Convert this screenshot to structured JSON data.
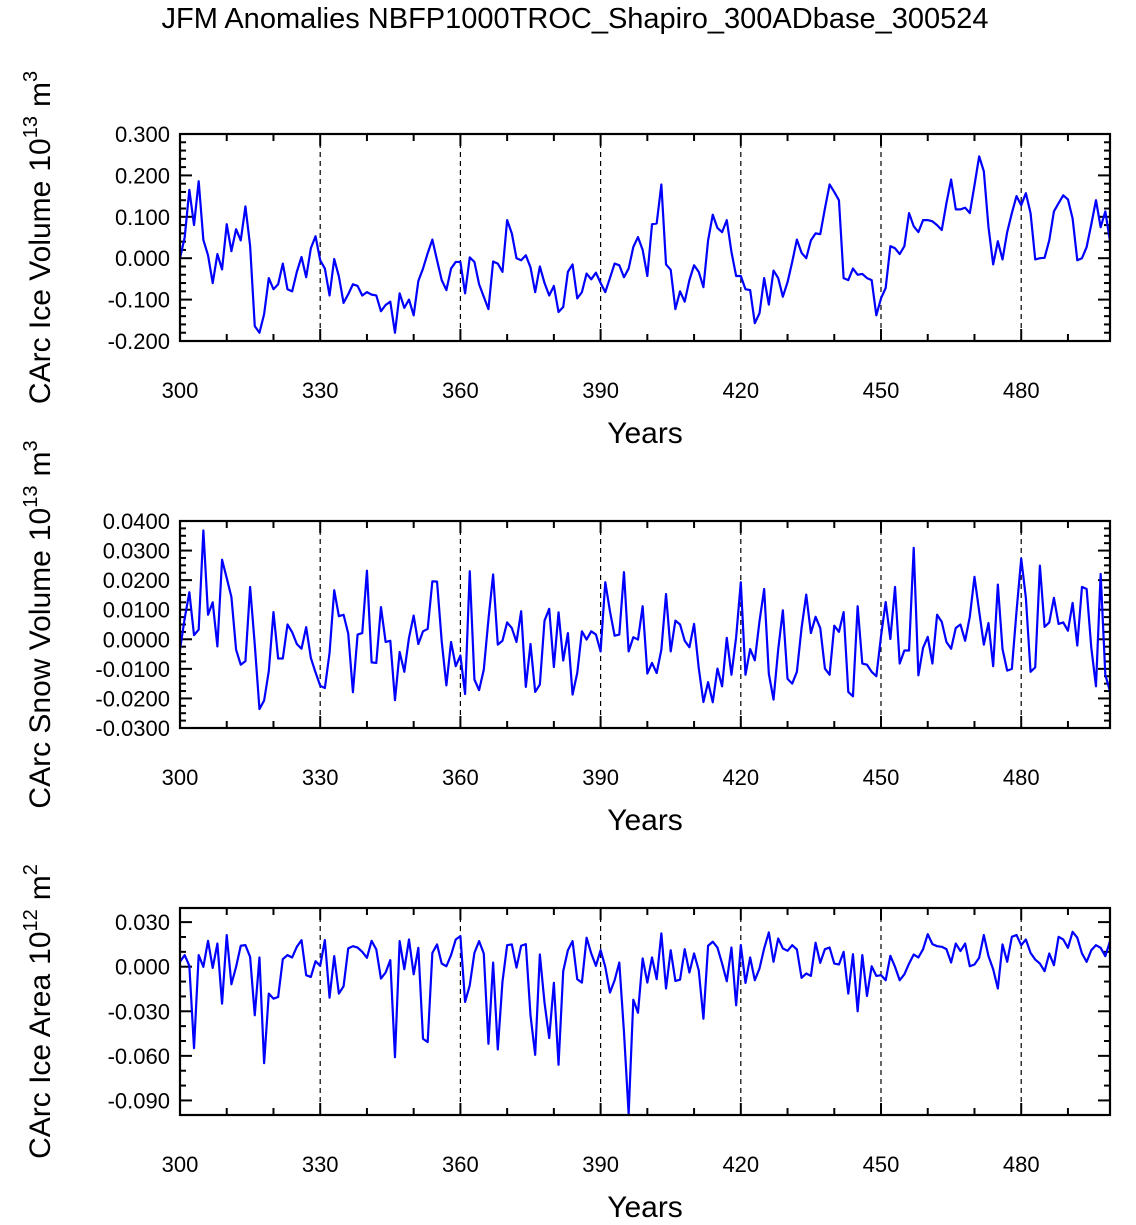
{
  "title": "JFM Anomalies NBFP1000TROC_Shapiro_300ADbase_300524",
  "line_color": "#0000ff",
  "chart_data": [
    {
      "type": "line",
      "ylabel": {
        "name": "CArc Ice Volume",
        "base": "10",
        "exp": "13",
        "unit": "m",
        "unit_exp": "3"
      },
      "xlabel": "Years",
      "xlim": [
        300,
        499
      ],
      "ylim": [
        -0.2,
        0.3
      ],
      "xticks": [
        300,
        330,
        360,
        390,
        420,
        450,
        480
      ],
      "xtick_labels": [
        "300",
        "330",
        "360",
        "390",
        "420",
        "450",
        "480"
      ],
      "yticks": [
        0.3,
        0.2,
        0.1,
        0.0,
        -0.1,
        -0.2
      ],
      "ytick_labels": [
        "0.300",
        "0.200",
        "0.100",
        "0.000",
        "-0.100",
        "-0.200"
      ],
      "y_minor_step": 0.02,
      "reference_lines_x": [
        330,
        360,
        390,
        420,
        450,
        480
      ],
      "years": {
        "start": 300,
        "end": 499,
        "step": 1
      },
      "values": [
        0.0,
        0.05,
        0.165,
        0.08,
        0.186,
        0.044,
        0.007,
        -0.06,
        0.01,
        -0.027,
        0.082,
        0.017,
        0.07,
        0.043,
        0.125,
        0.03,
        -0.164,
        -0.18,
        -0.135,
        -0.048,
        -0.075,
        -0.063,
        -0.013,
        -0.075,
        -0.08,
        -0.033,
        0.003,
        -0.046,
        0.024,
        0.053,
        -0.005,
        -0.025,
        -0.09,
        -0.002,
        -0.044,
        -0.108,
        -0.087,
        -0.063,
        -0.067,
        -0.09,
        -0.082,
        -0.088,
        -0.09,
        -0.128,
        -0.113,
        -0.105,
        -0.18,
        -0.085,
        -0.12,
        -0.1,
        -0.138,
        -0.055,
        -0.025,
        0.012,
        0.045,
        -0.005,
        -0.053,
        -0.077,
        -0.025,
        -0.009,
        -0.009,
        -0.085,
        0.002,
        -0.009,
        -0.063,
        -0.093,
        -0.123,
        -0.008,
        -0.013,
        -0.033,
        0.092,
        0.06,
        0.0,
        -0.005,
        0.007,
        -0.022,
        -0.082,
        -0.02,
        -0.06,
        -0.09,
        -0.067,
        -0.13,
        -0.118,
        -0.033,
        -0.015,
        -0.097,
        -0.082,
        -0.037,
        -0.051,
        -0.035,
        -0.06,
        -0.082,
        -0.048,
        -0.013,
        -0.017,
        -0.046,
        -0.025,
        0.027,
        0.051,
        0.02,
        -0.043,
        0.082,
        0.084,
        0.178,
        -0.015,
        -0.028,
        -0.123,
        -0.08,
        -0.105,
        -0.053,
        -0.017,
        -0.033,
        -0.07,
        0.043,
        0.105,
        0.073,
        0.063,
        0.092,
        0.015,
        -0.043,
        -0.043,
        -0.075,
        -0.077,
        -0.157,
        -0.133,
        -0.048,
        -0.112,
        -0.03,
        -0.048,
        -0.093,
        -0.058,
        -0.009,
        0.045,
        0.013,
        0.0,
        0.043,
        0.06,
        0.058,
        0.12,
        0.178,
        0.16,
        0.14,
        -0.048,
        -0.053,
        -0.025,
        -0.04,
        -0.038,
        -0.048,
        -0.053,
        -0.138,
        -0.097,
        -0.072,
        0.029,
        0.024,
        0.01,
        0.029,
        0.109,
        0.077,
        0.063,
        0.092,
        0.092,
        0.089,
        0.08,
        0.068,
        0.133,
        0.19,
        0.118,
        0.118,
        0.122,
        0.109,
        0.176,
        0.246,
        0.21,
        0.075,
        -0.015,
        0.041,
        -0.003,
        0.063,
        0.109,
        0.15,
        0.128,
        0.157,
        0.109,
        -0.003,
        0.0,
        0.001,
        0.043,
        0.113,
        0.133,
        0.152,
        0.142,
        0.096,
        -0.005,
        0.0,
        0.027,
        0.082,
        0.14,
        0.075,
        0.113,
        0.041
      ]
    },
    {
      "type": "line",
      "ylabel": {
        "name": "CArc Snow Volume",
        "base": "10",
        "exp": "13",
        "unit": "m",
        "unit_exp": "3"
      },
      "xlabel": "Years",
      "xlim": [
        300,
        499
      ],
      "ylim": [
        -0.03,
        0.04
      ],
      "xticks": [
        300,
        330,
        360,
        390,
        420,
        450,
        480
      ],
      "xtick_labels": [
        "300",
        "330",
        "360",
        "390",
        "420",
        "450",
        "480"
      ],
      "yticks": [
        0.04,
        0.03,
        0.02,
        0.01,
        0.0,
        -0.01,
        -0.02,
        -0.03
      ],
      "ytick_labels": [
        "0.0400",
        "0.0300",
        "0.0200",
        "0.0100",
        "0.0000",
        "-0.0100",
        "-0.0200",
        "-0.0300"
      ],
      "y_minor_step": 0.0025,
      "reference_lines_x": [
        330,
        360,
        390,
        420,
        450,
        480
      ],
      "years": {
        "start": 300,
        "end": 499,
        "step": 1
      },
      "values": [
        -0.0035,
        0.007,
        0.0159,
        0.0014,
        0.0033,
        0.0368,
        0.0083,
        0.0125,
        -0.0024,
        0.0269,
        0.0207,
        0.0143,
        -0.0035,
        -0.0086,
        -0.0074,
        0.0177,
        -0.0018,
        -0.0236,
        -0.0207,
        -0.0108,
        0.0092,
        -0.0065,
        -0.0065,
        0.005,
        0.0024,
        -0.0016,
        -0.0032,
        0.0041,
        -0.0063,
        -0.0112,
        -0.0157,
        -0.0165,
        -0.0046,
        0.0166,
        0.0078,
        0.0083,
        0.0019,
        -0.0179,
        0.0016,
        0.0021,
        0.0232,
        -0.0078,
        -0.008,
        0.0109,
        -0.0009,
        -0.0005,
        -0.0206,
        -0.0043,
        -0.011,
        0.0005,
        0.008,
        -0.0016,
        0.0027,
        0.0035,
        0.0196,
        0.0195,
        -0.0007,
        -0.0156,
        -0.0009,
        -0.0091,
        -0.0055,
        -0.0185,
        0.023,
        -0.0136,
        -0.0172,
        -0.0103,
        0.0067,
        0.0219,
        -0.0018,
        -0.0005,
        0.0057,
        0.0038,
        -0.0009,
        0.0095,
        -0.0161,
        -0.0016,
        -0.0178,
        -0.0153,
        0.0063,
        0.0103,
        -0.0094,
        0.0091,
        -0.0072,
        0.0021,
        -0.0187,
        -0.0114,
        0.0027,
        -0.0001,
        0.0027,
        0.0016,
        -0.0041,
        0.0193,
        0.0095,
        0.0012,
        0.0016,
        0.0227,
        -0.0041,
        0.0007,
        -0.0001,
        0.0112,
        -0.0116,
        -0.008,
        -0.0114,
        -0.0035,
        0.0153,
        -0.0041,
        0.0063,
        0.005,
        -0.0005,
        -0.0027,
        0.0052,
        -0.0097,
        -0.0212,
        -0.0145,
        -0.0213,
        -0.0099,
        -0.0159,
        0.0005,
        -0.012,
        0.0007,
        0.0193,
        -0.012,
        -0.0033,
        -0.0071,
        0.0061,
        0.017,
        -0.0117,
        -0.0204,
        -0.0035,
        0.0098,
        -0.0134,
        -0.015,
        -0.011,
        0.0038,
        0.0151,
        0.0021,
        0.0076,
        0.0038,
        -0.0099,
        -0.012,
        0.0046,
        0.0025,
        0.0092,
        -0.0178,
        -0.0193,
        0.0112,
        -0.0082,
        -0.0086,
        -0.011,
        -0.0125,
        0.001,
        0.0126,
        0.0001,
        0.0177,
        -0.0082,
        -0.0038,
        -0.0038,
        0.0309,
        -0.0122,
        -0.0029,
        0.0008,
        -0.0082,
        0.0083,
        0.0059,
        -0.0009,
        -0.0032,
        0.0038,
        0.005,
        -0.0005,
        0.0076,
        0.0211,
        0.0095,
        -0.0018,
        0.0055,
        -0.0091,
        0.0185,
        -0.0033,
        -0.0106,
        -0.01,
        0.0095,
        0.0273,
        0.014,
        -0.011,
        -0.0095,
        0.0249,
        0.0042,
        0.0057,
        0.014,
        0.0052,
        0.0057,
        0.0029,
        0.0123,
        -0.0021,
        0.0177,
        0.017,
        -0.0029,
        -0.0159,
        0.0221,
        -0.012,
        -0.0176
      ]
    },
    {
      "type": "line",
      "ylabel": {
        "name": "CArc Ice Area",
        "base": "10",
        "exp": "12",
        "unit": "m",
        "unit_exp": "2"
      },
      "xlabel": "Years",
      "xlim": [
        300,
        499
      ],
      "ylim": [
        -0.0998,
        0.0395
      ],
      "xticks": [
        300,
        330,
        360,
        390,
        420,
        450,
        480
      ],
      "xtick_labels": [
        "300",
        "330",
        "360",
        "390",
        "420",
        "450",
        "480"
      ],
      "yticks": [
        0.03,
        0.0,
        -0.03,
        -0.06,
        -0.09
      ],
      "ytick_labels": [
        "0.030",
        "0.000",
        "-0.030",
        "-0.060",
        "-0.090"
      ],
      "y_minor_step": 0.01,
      "reference_lines_x": [
        330,
        360,
        390,
        420,
        450,
        480
      ],
      "years": {
        "start": 300,
        "end": 499,
        "step": 1
      },
      "values": [
        0.0033,
        0.0078,
        0.0006,
        -0.0548,
        0.0078,
        -0.0001,
        0.0174,
        -0.0008,
        0.0156,
        -0.0249,
        0.0213,
        -0.0118,
        -0.0001,
        0.0141,
        0.0145,
        0.0066,
        -0.0327,
        0.0062,
        -0.0649,
        -0.0181,
        -0.0215,
        -0.0204,
        0.0051,
        0.0078,
        0.0062,
        0.0134,
        0.0179,
        -0.0057,
        -0.0069,
        0.0037,
        0.0006,
        0.0179,
        -0.0208,
        0.0071,
        -0.0181,
        -0.0132,
        0.0123,
        0.0138,
        0.0129,
        0.01,
        0.006,
        0.0174,
        0.0116,
        -0.008,
        -0.0039,
        0.0044,
        -0.0609,
        0.0172,
        -0.0017,
        0.0183,
        -0.0051,
        0.0127,
        -0.0485,
        -0.0507,
        0.0093,
        0.015,
        0.0021,
        0.0003,
        0.0078,
        0.0183,
        0.0206,
        -0.0237,
        -0.0125,
        0.0093,
        0.0172,
        0.0089,
        -0.0519,
        0.0028,
        -0.0557,
        -0.0102,
        0.0145,
        0.015,
        -0.0006,
        0.0141,
        0.0152,
        -0.0327,
        -0.0593,
        0.0082,
        -0.0242,
        -0.048,
        -0.0109,
        -0.066,
        -0.003,
        0.0111,
        0.0172,
        -0.0084,
        -0.0107,
        0.0195,
        0.0089,
        0.0006,
        0.0111,
        -0.0001,
        -0.0174,
        -0.0091,
        0.0028,
        -0.044,
        -0.0991,
        -0.0222,
        -0.031,
        0.0055,
        -0.0107,
        0.0062,
        -0.0084,
        0.0224,
        -0.0147,
        0.0111,
        -0.0096,
        -0.0087,
        0.0118,
        -0.0039,
        0.0089,
        -0.0024,
        -0.035,
        0.0141,
        0.0168,
        0.0129,
        0.0021,
        -0.0098,
        0.0129,
        -0.026,
        0.0145,
        -0.0109,
        0.0062,
        -0.0091,
        -0.0012,
        0.0123,
        0.0231,
        0.0033,
        0.019,
        0.0123,
        0.0107,
        0.0145,
        0.0116,
        -0.0075,
        -0.0046,
        -0.0062,
        0.0161,
        0.0026,
        0.0118,
        0.0129,
        0.0021,
        0.0015,
        0.01,
        -0.0181,
        0.0084,
        -0.03,
        0.0078,
        -0.0197,
        0.0003,
        -0.0062,
        -0.0057,
        -0.0091,
        0.0073,
        -0.0001,
        -0.0091,
        -0.0051,
        0.0021,
        0.0082,
        0.0062,
        0.0118,
        0.0219,
        0.0152,
        0.0138,
        0.0134,
        0.0118,
        0.0028,
        0.0156,
        0.0105,
        0.0156,
        0.0003,
        0.0015,
        0.006,
        0.0213,
        0.0071,
        -0.0017,
        -0.0147,
        0.015,
        0.0033,
        0.0201,
        0.0213,
        0.0145,
        0.0183,
        0.0093,
        0.0048,
        0.0021,
        -0.003,
        0.0089,
        0.001,
        0.0201,
        0.0183,
        0.0127,
        0.0235,
        0.0195,
        0.0089,
        0.0033,
        0.0111,
        0.0145,
        0.0127,
        0.0071,
        0.0172
      ]
    }
  ]
}
